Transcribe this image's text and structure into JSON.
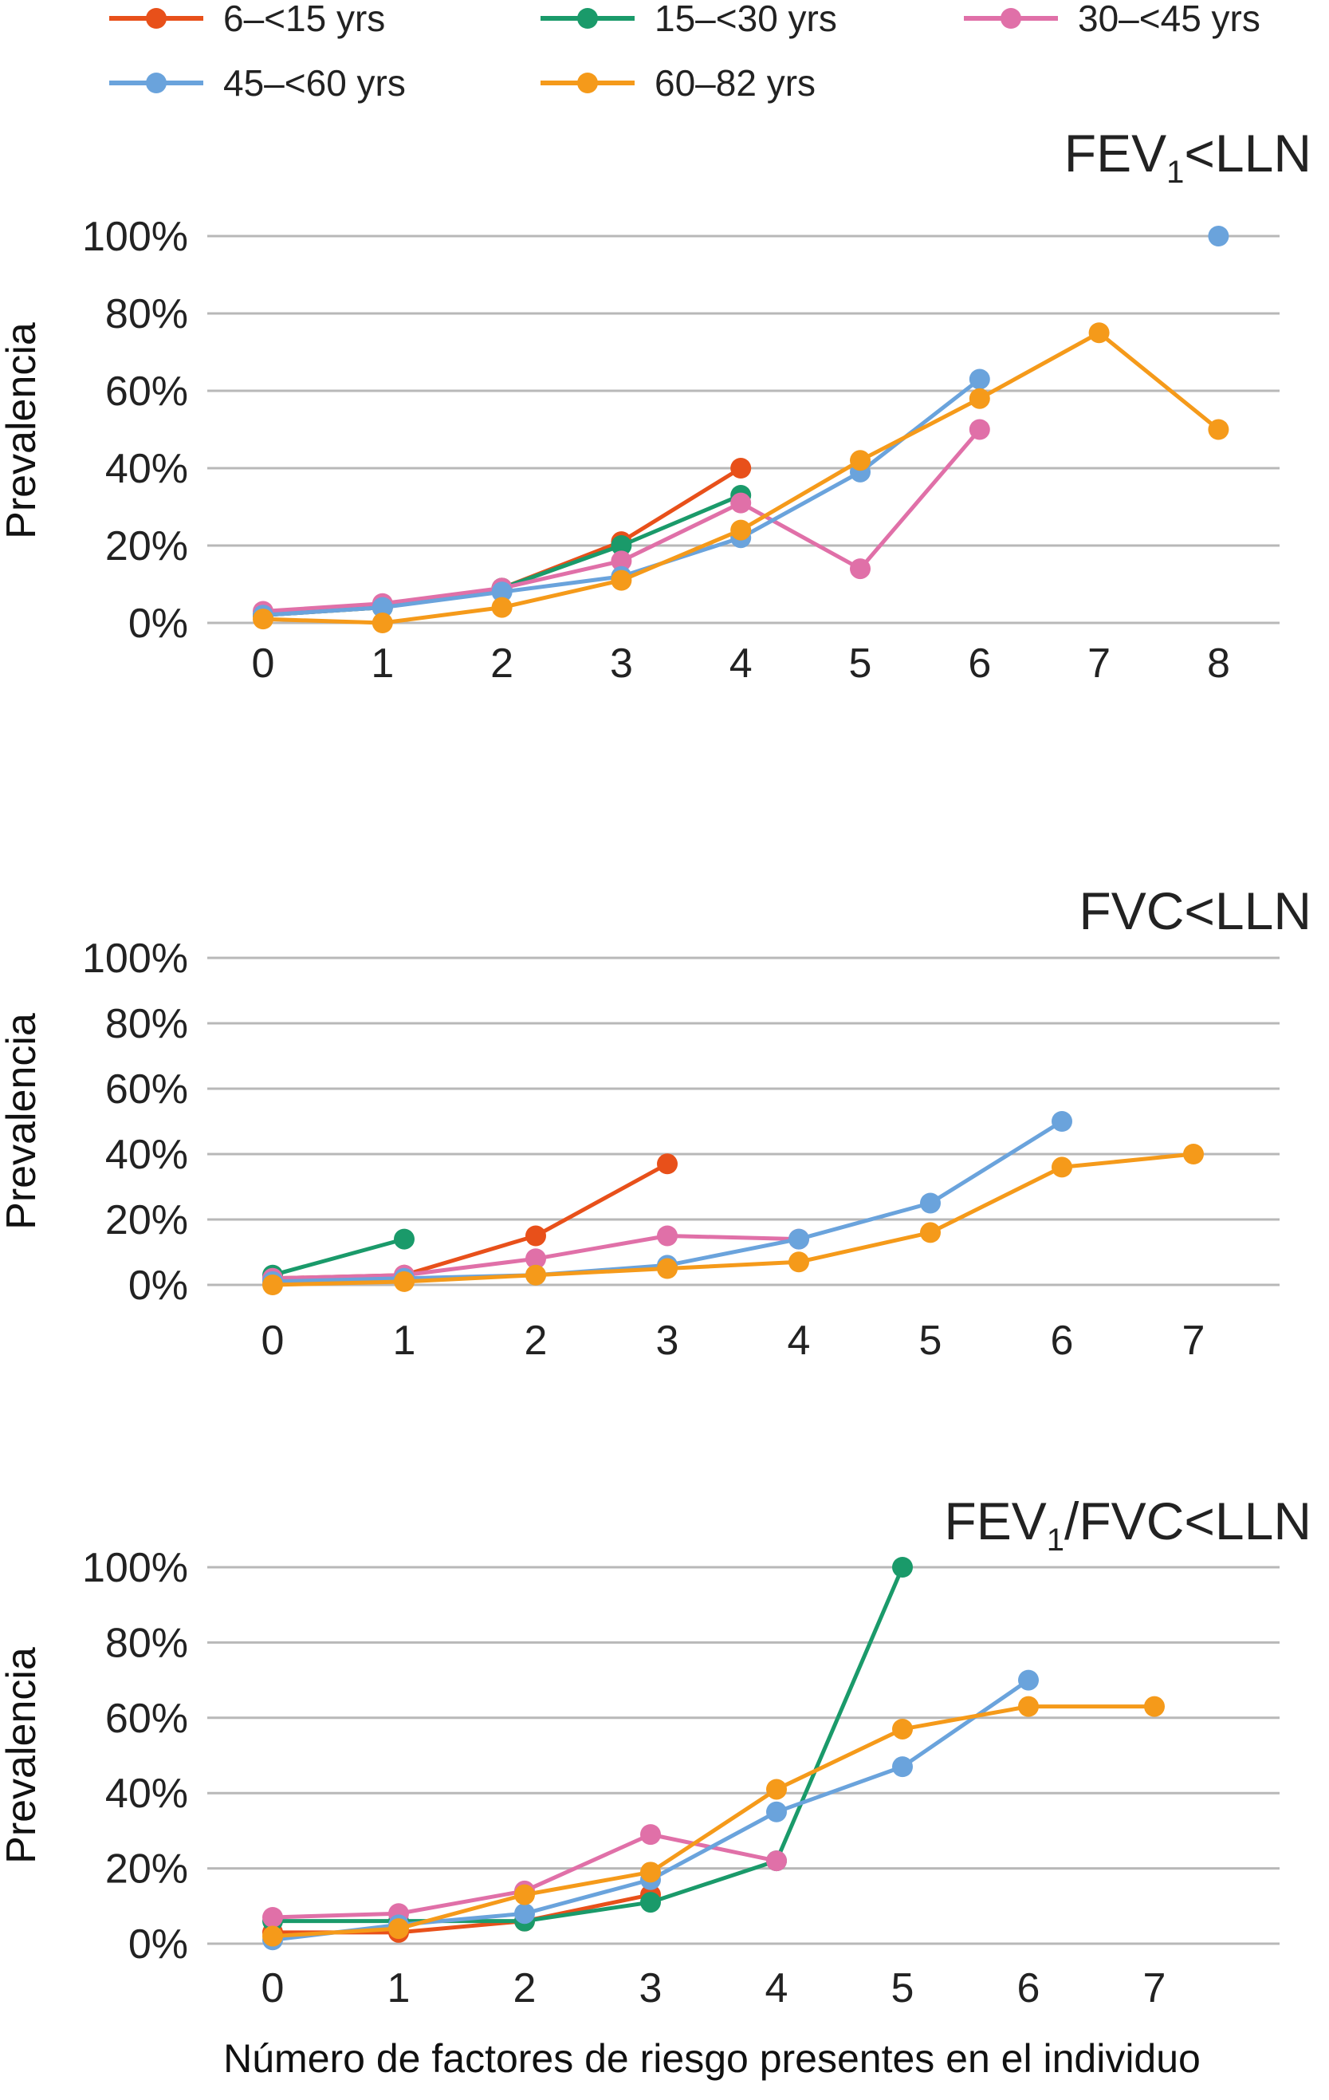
{
  "legend": [
    {
      "name": "6–<15 yrs",
      "color": "#e8501a"
    },
    {
      "name": "15–<30 yrs",
      "color": "#1a9a6a"
    },
    {
      "name": "30–<45 yrs",
      "color": "#e070a8"
    },
    {
      "name": "45–<60 yrs",
      "color": "#6aa3dc"
    },
    {
      "name": "60–82 yrs",
      "color": "#f59a1a"
    }
  ],
  "x_axis_label": "Número de factores de riesgo presentes en el individuo",
  "chart_data": [
    {
      "type": "line",
      "title": "FEV1<LLN",
      "title_main": "FEV",
      "title_sub": "1",
      "title_rest": "<LLN",
      "ylabel": "Prevalencia",
      "xlabel": "Número de factores de riesgo presentes en el individuo",
      "ylim": [
        0,
        100
      ],
      "yticks": [
        "0%",
        "20%",
        "40%",
        "60%",
        "80%",
        "100%"
      ],
      "grid": "horizontal",
      "x": [
        0,
        1,
        2,
        3,
        4,
        5,
        6,
        7,
        8
      ],
      "series": [
        {
          "name": "6–<15 yrs",
          "values": [
            2,
            4,
            9,
            21,
            40,
            null,
            null,
            null,
            null
          ]
        },
        {
          "name": "15–<30 yrs",
          "values": [
            2,
            4,
            9,
            20,
            33,
            null,
            null,
            null,
            null
          ]
        },
        {
          "name": "30–<45 yrs",
          "values": [
            3,
            5,
            9,
            16,
            31,
            14,
            50,
            null,
            null
          ]
        },
        {
          "name": "45–<60 yrs",
          "values": [
            2,
            4,
            8,
            12,
            22,
            39,
            63,
            null,
            100
          ]
        },
        {
          "name": "60–82 yrs",
          "values": [
            1,
            0,
            4,
            11,
            24,
            42,
            58,
            75,
            50
          ]
        }
      ]
    },
    {
      "type": "line",
      "title": "FVC<LLN",
      "title_main": "FVC<LLN",
      "title_sub": "",
      "title_rest": "",
      "ylabel": "Prevalencia",
      "xlabel": "Número de factores de riesgo presentes en el individuo",
      "ylim": [
        0,
        100
      ],
      "yticks": [
        "0%",
        "20%",
        "40%",
        "60%",
        "80%",
        "100%"
      ],
      "grid": "horizontal",
      "x": [
        0,
        1,
        2,
        3,
        4,
        5,
        6,
        7
      ],
      "series": [
        {
          "name": "6–<15 yrs",
          "values": [
            2,
            3,
            15,
            37,
            null,
            null,
            null,
            null
          ]
        },
        {
          "name": "15–<30 yrs",
          "values": [
            3,
            14,
            null,
            null,
            null,
            null,
            null,
            null
          ]
        },
        {
          "name": "30–<45 yrs",
          "values": [
            2,
            3,
            8,
            15,
            14,
            null,
            null,
            null
          ]
        },
        {
          "name": "45–<60 yrs",
          "values": [
            1,
            2,
            3,
            6,
            14,
            25,
            50,
            null
          ]
        },
        {
          "name": "60–82 yrs",
          "values": [
            0,
            1,
            3,
            5,
            7,
            16,
            36,
            40
          ]
        }
      ]
    },
    {
      "type": "line",
      "title": "FEV1/FVC<LLN",
      "title_main": "FEV",
      "title_sub": "1",
      "title_rest": "/FVC<LLN",
      "ylabel": "Prevalencia",
      "xlabel": "Número de factores de riesgo presentes en el individuo",
      "ylim": [
        0,
        100
      ],
      "yticks": [
        "0%",
        "20%",
        "40%",
        "60%",
        "80%",
        "100%"
      ],
      "grid": "horizontal",
      "x": [
        0,
        1,
        2,
        3,
        4,
        5,
        6,
        7
      ],
      "series": [
        {
          "name": "6–<15 yrs",
          "values": [
            3,
            3,
            6,
            13,
            null,
            null,
            null,
            null
          ]
        },
        {
          "name": "15–<30 yrs",
          "values": [
            6,
            6,
            6,
            11,
            22,
            100,
            null,
            null
          ]
        },
        {
          "name": "30–<45 yrs",
          "values": [
            7,
            8,
            14,
            29,
            22,
            null,
            null,
            null
          ]
        },
        {
          "name": "45–<60 yrs",
          "values": [
            1,
            5,
            8,
            17,
            35,
            47,
            70,
            null
          ]
        },
        {
          "name": "60–82 yrs",
          "values": [
            2,
            4,
            13,
            19,
            41,
            57,
            63,
            63
          ]
        }
      ]
    }
  ]
}
